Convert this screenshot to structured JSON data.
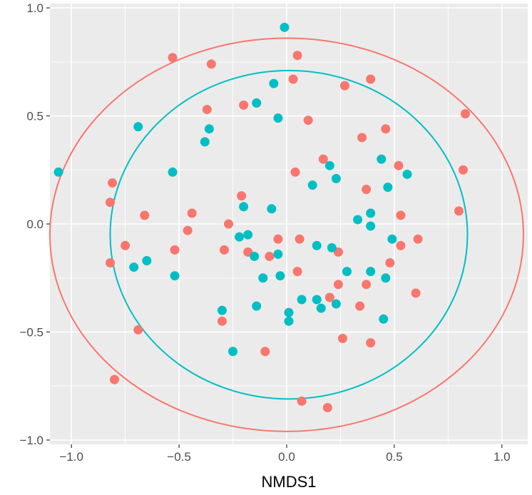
{
  "chart_data": {
    "type": "scatter",
    "xlabel": "NMDS1",
    "ylabel": "",
    "xlim": [
      -1.1,
      1.12
    ],
    "ylim": [
      -1.02,
      1.02
    ],
    "x_ticks": [
      {
        "value": -1.0,
        "label": "−1.0"
      },
      {
        "value": -0.5,
        "label": "−0.5"
      },
      {
        "value": 0.0,
        "label": "0.0"
      },
      {
        "value": 0.5,
        "label": "0.5"
      },
      {
        "value": 1.0,
        "label": "1.0"
      }
    ],
    "y_ticks": [
      {
        "value": -1.0,
        "label": "−1.0"
      },
      {
        "value": -0.5,
        "label": "−0.5"
      },
      {
        "value": 0.0,
        "label": "0.0"
      },
      {
        "value": 0.5,
        "label": "0.5"
      },
      {
        "value": 1.0,
        "label": "1.0"
      }
    ],
    "grid": true,
    "legend": "none",
    "colors": {
      "panel": "#ebebeb",
      "grid": "#ffffff",
      "red": "#f8766d",
      "teal": "#00bfc4",
      "tick": "#333333"
    },
    "series": [
      {
        "color": "#f8766d",
        "points": [
          [
            -0.53,
            0.77
          ],
          [
            -0.35,
            0.74
          ],
          [
            0.05,
            0.78
          ],
          [
            0.03,
            0.67
          ],
          [
            0.27,
            0.64
          ],
          [
            0.39,
            0.67
          ],
          [
            -0.37,
            0.53
          ],
          [
            -0.2,
            0.55
          ],
          [
            0.1,
            0.48
          ],
          [
            0.83,
            0.51
          ],
          [
            0.46,
            0.44
          ],
          [
            0.35,
            0.4
          ],
          [
            0.17,
            0.3
          ],
          [
            0.04,
            0.24
          ],
          [
            0.52,
            0.27
          ],
          [
            0.82,
            0.25
          ],
          [
            -0.81,
            0.19
          ],
          [
            -0.21,
            0.13
          ],
          [
            0.37,
            0.16
          ],
          [
            -0.82,
            0.1
          ],
          [
            -0.66,
            0.04
          ],
          [
            -0.44,
            0.05
          ],
          [
            0.53,
            0.04
          ],
          [
            0.8,
            0.06
          ],
          [
            -0.27,
            0.0
          ],
          [
            -0.46,
            -0.03
          ],
          [
            -0.75,
            -0.1
          ],
          [
            -0.52,
            -0.12
          ],
          [
            -0.29,
            -0.12
          ],
          [
            -0.18,
            -0.13
          ],
          [
            -0.08,
            -0.15
          ],
          [
            -0.04,
            -0.07
          ],
          [
            0.06,
            -0.07
          ],
          [
            0.24,
            -0.13
          ],
          [
            0.53,
            -0.1
          ],
          [
            0.61,
            -0.07
          ],
          [
            -0.82,
            -0.18
          ],
          [
            0.05,
            -0.22
          ],
          [
            0.48,
            -0.18
          ],
          [
            0.24,
            -0.28
          ],
          [
            0.37,
            -0.28
          ],
          [
            0.6,
            -0.32
          ],
          [
            0.2,
            -0.34
          ],
          [
            0.34,
            -0.38
          ],
          [
            -0.3,
            -0.45
          ],
          [
            -0.69,
            -0.49
          ],
          [
            0.26,
            -0.53
          ],
          [
            0.39,
            -0.55
          ],
          [
            -0.1,
            -0.59
          ],
          [
            0.07,
            -0.82
          ],
          [
            0.19,
            -0.85
          ],
          [
            -0.8,
            -0.72
          ]
        ]
      },
      {
        "color": "#00bfc4",
        "points": [
          [
            -0.01,
            0.91
          ],
          [
            -0.06,
            0.65
          ],
          [
            -0.14,
            0.56
          ],
          [
            -0.69,
            0.45
          ],
          [
            -0.36,
            0.44
          ],
          [
            -0.04,
            0.49
          ],
          [
            -0.38,
            0.38
          ],
          [
            -1.06,
            0.24
          ],
          [
            -0.53,
            0.24
          ],
          [
            0.2,
            0.27
          ],
          [
            0.23,
            0.21
          ],
          [
            0.44,
            0.3
          ],
          [
            0.56,
            0.23
          ],
          [
            0.12,
            0.18
          ],
          [
            0.47,
            0.17
          ],
          [
            -0.2,
            0.08
          ],
          [
            -0.07,
            0.07
          ],
          [
            0.39,
            0.05
          ],
          [
            0.33,
            0.02
          ],
          [
            0.39,
            -0.01
          ],
          [
            -0.22,
            -0.06
          ],
          [
            -0.18,
            -0.05
          ],
          [
            0.49,
            -0.07
          ],
          [
            -0.15,
            -0.15
          ],
          [
            -0.04,
            -0.14
          ],
          [
            0.14,
            -0.1
          ],
          [
            0.21,
            -0.11
          ],
          [
            -0.65,
            -0.17
          ],
          [
            -0.71,
            -0.2
          ],
          [
            -0.52,
            -0.24
          ],
          [
            -0.11,
            -0.25
          ],
          [
            -0.03,
            -0.24
          ],
          [
            0.28,
            -0.22
          ],
          [
            0.39,
            -0.22
          ],
          [
            0.46,
            -0.25
          ],
          [
            -0.14,
            -0.38
          ],
          [
            0.07,
            -0.35
          ],
          [
            0.14,
            -0.35
          ],
          [
            0.23,
            -0.37
          ],
          [
            -0.3,
            -0.4
          ],
          [
            0.01,
            -0.41
          ],
          [
            0.16,
            -0.39
          ],
          [
            0.01,
            -0.45
          ],
          [
            0.45,
            -0.44
          ],
          [
            -0.25,
            -0.59
          ]
        ]
      }
    ],
    "ellipses": [
      {
        "color": "#f8766d",
        "cx": 0.0,
        "cy": -0.05,
        "rx": 1.1,
        "ry": 0.91
      },
      {
        "color": "#00bfc4",
        "cx": 0.01,
        "cy": -0.05,
        "rx": 0.83,
        "ry": 0.76
      }
    ]
  }
}
